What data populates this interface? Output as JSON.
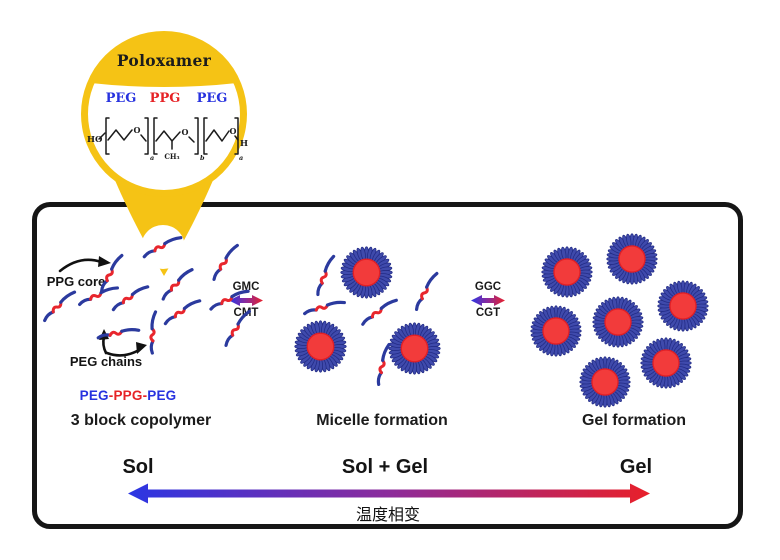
{
  "figure": {
    "balloon": {
      "title": "Poloxamer",
      "peg_left": "PEG",
      "ppg_mid": "PPG",
      "peg_right": "PEG",
      "chem": {
        "ho": "HO",
        "o1": "O",
        "o2": "O",
        "o3": "O",
        "ch3": "CH₃",
        "h": "H",
        "sub_a1": "a",
        "sub_b": "b",
        "sub_a2": "a"
      }
    },
    "sol_panel": {
      "ppg_core_label": "PPG core",
      "peg_chains_label": "PEG chains",
      "copolymer": {
        "p1": "PEG",
        "dash": "-",
        "p2": "PPG",
        "p3": "PEG"
      },
      "caption": "3 block copolymer",
      "phase": "Sol"
    },
    "micelle_panel": {
      "caption": "Micelle formation",
      "phase": "Sol + Gel"
    },
    "gel_panel": {
      "caption": "Gel formation",
      "phase": "Gel"
    },
    "transition_sol_micelle": {
      "above": "GMC",
      "below": "CMT"
    },
    "transition_micelle_gel": {
      "above": "GGC",
      "below": "CGT"
    },
    "temperature_axis_label": "温度相变",
    "colors": {
      "balloon_yellow": "#f5c315",
      "chain_blue": "#2b3a9e",
      "chain_red": "#e8262d",
      "micelle_petal_blue": "#3f4aac",
      "micelle_core_red": "#f23b3b",
      "gradient_blue": "#2b36e3",
      "gradient_purple": "#8c2b9b",
      "gradient_red": "#e8202a",
      "peg_text_blue": "#2732df",
      "ppg_text_red": "#e62226"
    }
  }
}
